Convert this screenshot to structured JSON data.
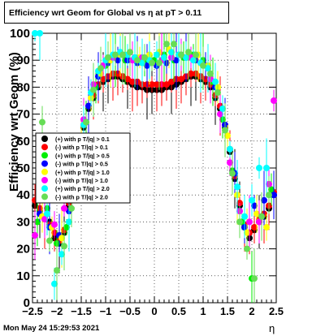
{
  "title": "Efficiency wrt Geom for Global vs   η at pT > 0.11",
  "footer": {
    "date": "Mon May 24 15:29:53 2021"
  },
  "chart_data": {
    "type": "scatter",
    "title": "Efficiency wrt Geom for Global vs   η at pT > 0.11",
    "xlabel": "η",
    "ylabel": "Efficiency wrt Geom (%)",
    "xlim": [
      -2.5,
      2.5
    ],
    "ylim": [
      0,
      100
    ],
    "x_ticks": [
      "−2.5",
      "−2",
      "−1.5",
      "−1",
      "−0.5",
      "0",
      "0.5",
      "1",
      "1.5",
      "2",
      "2.5"
    ],
    "y_ticks": [
      "0",
      "10",
      "20",
      "30",
      "40",
      "50",
      "60",
      "70",
      "80",
      "90",
      "100"
    ],
    "grid": true,
    "legend_position": "left-middle",
    "series": [
      {
        "name": "(+) with p T/|q| > 0.1",
        "color": "#000000",
        "x": [
          -2.45,
          -2.35,
          -2.25,
          -2.15,
          -2.05,
          -1.95,
          -1.85,
          -1.75,
          -1.65,
          -1.55,
          -1.45,
          -1.35,
          -1.25,
          -1.15,
          -1.05,
          -0.95,
          -0.85,
          -0.75,
          -0.65,
          -0.55,
          -0.45,
          -0.35,
          -0.25,
          -0.15,
          -0.05,
          0.05,
          0.15,
          0.25,
          0.35,
          0.45,
          0.55,
          0.65,
          0.75,
          0.85,
          0.95,
          1.05,
          1.15,
          1.25,
          1.35,
          1.45,
          1.55,
          1.65,
          1.75,
          1.85,
          1.95,
          2.05,
          2.15,
          2.25,
          2.35,
          2.45
        ],
        "y": [
          36,
          34,
          32,
          30,
          24,
          22,
          26,
          36,
          45,
          55,
          65,
          72,
          76,
          80,
          82,
          83,
          84,
          84,
          83,
          82,
          81,
          80,
          80,
          79,
          79,
          79,
          79,
          80,
          80,
          81,
          82,
          83,
          84,
          84,
          83,
          82,
          80,
          76,
          72,
          65,
          56,
          46,
          36,
          28,
          24,
          27,
          30,
          32,
          35,
          40
        ]
      },
      {
        "name": "(-) with p T/|q| > 0.1",
        "color": "#ff0000",
        "x": [
          -2.45,
          -2.35,
          -2.25,
          -2.15,
          -2.05,
          -1.95,
          -1.85,
          -1.75,
          -1.65,
          -1.55,
          -1.45,
          -1.35,
          -1.25,
          -1.15,
          -1.05,
          -0.95,
          -0.85,
          -0.75,
          -0.65,
          -0.55,
          -0.45,
          -0.35,
          -0.25,
          -0.15,
          -0.05,
          0.05,
          0.15,
          0.25,
          0.35,
          0.45,
          0.55,
          0.65,
          0.75,
          0.85,
          0.95,
          1.05,
          1.15,
          1.25,
          1.35,
          1.45,
          1.55,
          1.65,
          1.75,
          1.85,
          1.95,
          2.05,
          2.15,
          2.25,
          2.35,
          2.45
        ],
        "y": [
          38,
          35,
          31,
          29,
          26,
          23,
          27,
          37,
          46,
          56,
          66,
          73,
          77,
          81,
          83,
          84,
          85,
          85,
          84,
          83,
          82,
          82,
          81,
          81,
          81,
          81,
          81,
          81,
          82,
          83,
          83,
          84,
          85,
          85,
          84,
          83,
          81,
          77,
          73,
          66,
          57,
          47,
          37,
          29,
          26,
          28,
          31,
          33,
          36,
          41
        ]
      },
      {
        "name": "(+) with p T/|q| > 0.5",
        "color": "#00ee00",
        "x": [
          -2.4,
          -2.2,
          -2.0,
          -1.8,
          -1.6,
          -1.4,
          -1.2,
          -1.0,
          -0.8,
          -0.6,
          -0.4,
          -0.2,
          0.0,
          0.2,
          0.4,
          0.6,
          0.8,
          1.0,
          1.2,
          1.4,
          1.6,
          1.8,
          2.0,
          2.2,
          2.4
        ],
        "y": [
          30,
          35,
          22,
          28,
          50,
          67,
          80,
          88,
          91,
          90,
          91,
          89,
          90,
          92,
          90,
          91,
          92,
          90,
          82,
          68,
          49,
          30,
          9,
          32,
          42
        ]
      },
      {
        "name": "(-) with p T/|q| > 0.5",
        "color": "#0000ff",
        "x": [
          -2.35,
          -2.15,
          -1.95,
          -1.75,
          -1.55,
          -1.35,
          -1.15,
          -0.95,
          -0.75,
          -0.55,
          -0.35,
          -0.15,
          0.05,
          0.25,
          0.45,
          0.65,
          0.85,
          1.05,
          1.25,
          1.45,
          1.65,
          1.85,
          2.05,
          2.25,
          2.45
        ],
        "y": [
          33,
          28,
          25,
          34,
          57,
          73,
          84,
          89,
          90,
          90,
          89,
          88,
          88,
          89,
          90,
          91,
          90,
          88,
          80,
          66,
          48,
          28,
          36,
          38,
          40
        ]
      },
      {
        "name": "(+) with p T/|q| > 1.0",
        "color": "#ffff00",
        "x": [
          -2.3,
          -2.1,
          -1.9,
          -1.7,
          -1.5,
          -1.3,
          -1.1,
          -0.9,
          -0.7,
          -0.5,
          -0.3,
          -0.1,
          0.1,
          0.3,
          0.5,
          0.7,
          0.9,
          1.1,
          1.3,
          1.5,
          1.7,
          1.9,
          2.1,
          2.3
        ],
        "y": [
          32,
          28,
          24,
          40,
          60,
          76,
          85,
          90,
          92,
          93,
          91,
          92,
          93,
          94,
          92,
          93,
          92,
          88,
          80,
          62,
          40,
          26,
          33,
          28
        ]
      },
      {
        "name": "(-) with p T/|q| > 1.0",
        "color": "#ff00ff",
        "x": [
          -2.45,
          -2.25,
          -2.05,
          -1.85,
          -1.65,
          -1.45,
          -1.25,
          -1.05,
          -0.85,
          -0.65,
          -0.45,
          -0.25,
          -0.05,
          0.15,
          0.35,
          0.55,
          0.75,
          0.95,
          1.15,
          1.35,
          1.55,
          1.75,
          1.95,
          2.15,
          2.35,
          2.45
        ],
        "y": [
          25,
          31,
          29,
          35,
          48,
          68,
          81,
          88,
          91,
          92,
          90,
          91,
          89,
          90,
          91,
          92,
          91,
          89,
          83,
          70,
          52,
          34,
          30,
          30,
          44,
          75
        ]
      },
      {
        "name": "(+) with p T/|q| > 2.0",
        "color": "#00ffff",
        "x": [
          -2.45,
          -2.35,
          -2.2,
          -2.05,
          -1.9,
          -1.75,
          -1.6,
          -1.45,
          -1.3,
          -1.15,
          -1.0,
          -0.85,
          -0.7,
          -0.55,
          -0.4,
          -0.25,
          -0.1,
          0.05,
          0.2,
          0.35,
          0.5,
          0.65,
          0.8,
          0.95,
          1.1,
          1.25,
          1.4,
          1.55,
          1.7,
          1.85,
          2.0,
          2.15,
          2.3
        ],
        "y": [
          100,
          100,
          33,
          7,
          18,
          30,
          48,
          66,
          78,
          86,
          90,
          92,
          93,
          92,
          91,
          89,
          90,
          92,
          91,
          93,
          92,
          91,
          90,
          89,
          87,
          82,
          72,
          57,
          43,
          32,
          38,
          50,
          50
        ]
      },
      {
        "name": "(-) with p T/|q| > 2.0",
        "color": "#66dd55",
        "x": [
          -2.3,
          -2.15,
          -2.0,
          -1.85,
          -1.7,
          -1.55,
          -1.4,
          -1.25,
          -1.1,
          -0.95,
          -0.8,
          -0.65,
          -0.5,
          -0.35,
          -0.2,
          -0.05,
          0.1,
          0.25,
          0.4,
          0.55,
          0.7,
          0.85,
          1.0,
          1.15,
          1.3,
          1.45,
          1.6,
          1.75,
          1.9,
          2.05,
          2.2,
          2.35
        ],
        "y": [
          67,
          23,
          12,
          21,
          35,
          52,
          67,
          79,
          87,
          91,
          92,
          92,
          93,
          90,
          91,
          89,
          89,
          96,
          96,
          92,
          93,
          92,
          88,
          85,
          78,
          64,
          48,
          30,
          20,
          9,
          32,
          40
        ]
      }
    ]
  }
}
